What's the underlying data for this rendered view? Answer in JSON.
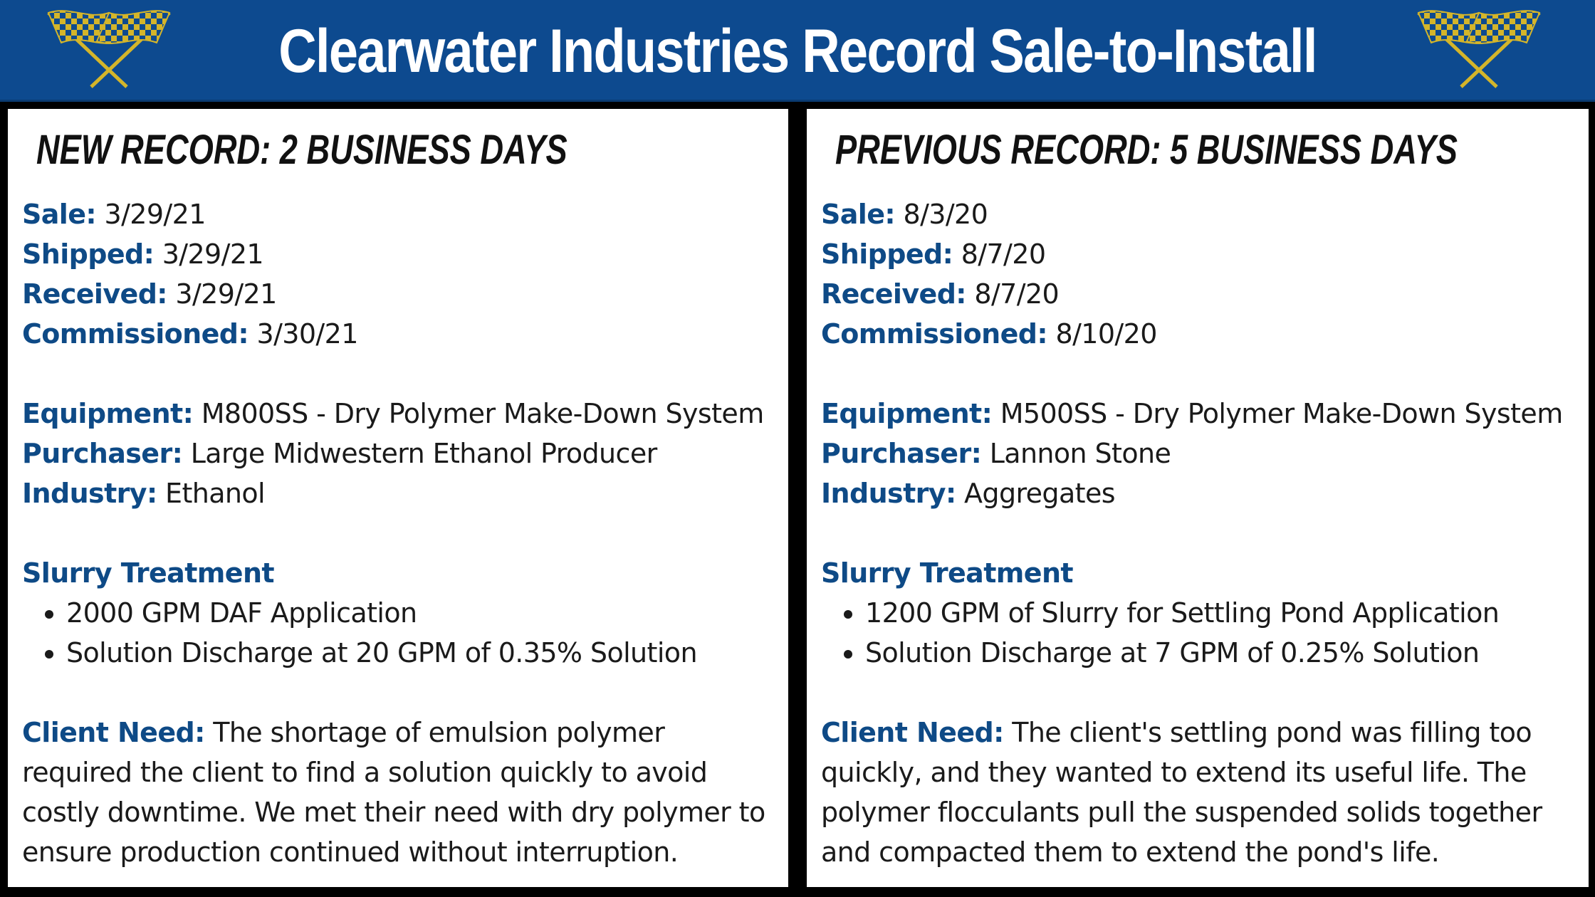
{
  "header": {
    "title": "Clearwater Industries Record Sale-to-Install",
    "icon": "checkered-flags-icon",
    "colors": {
      "background": "#0d4a8f",
      "flag_yellow": "#d4b52a",
      "flag_blue": "#0d4a8f"
    }
  },
  "colors": {
    "label": "#0e4a86",
    "text": "#1a1a1a",
    "frame": "#000000"
  },
  "new_record": {
    "title": "New Record: 2 Business Days",
    "sale_label": "Sale:",
    "sale": "3/29/21",
    "shipped_label": "Shipped:",
    "shipped": "3/29/21",
    "received_label": "Received:",
    "received": "3/29/21",
    "commissioned_label": "Commissioned:",
    "commissioned": "3/30/21",
    "equipment_label": "Equipment:",
    "equipment": "M800SS - Dry Polymer Make-Down System",
    "purchaser_label": "Purchaser:",
    "purchaser": "Large Midwestern Ethanol Producer",
    "industry_label": "Industry:",
    "industry": "Ethanol",
    "slurry_heading": "Slurry Treatment",
    "bullets": [
      "2000 GPM DAF Application",
      "Solution Discharge at 20 GPM of 0.35% Solution"
    ],
    "client_need_label": "Client Need:",
    "client_need": "The shortage of emulsion polymer required the client to find a solution quickly to avoid costly downtime. We met their need with dry polymer to ensure production continued without interruption."
  },
  "previous_record": {
    "title": "Previous Record: 5 Business Days",
    "sale_label": "Sale:",
    "sale": "8/3/20",
    "shipped_label": "Shipped:",
    "shipped": "8/7/20",
    "received_label": "Received:",
    "received": "8/7/20",
    "commissioned_label": "Commissioned:",
    "commissioned": "8/10/20",
    "equipment_label": "Equipment:",
    "equipment": "M500SS - Dry Polymer Make-Down System",
    "purchaser_label": "Purchaser:",
    "purchaser": "Lannon Stone",
    "industry_label": "Industry:",
    "industry": "Aggregates",
    "slurry_heading": "Slurry Treatment",
    "bullets": [
      "1200 GPM of Slurry for Settling Pond Application",
      "Solution Discharge at 7 GPM of 0.25% Solution"
    ],
    "client_need_label": "Client Need:",
    "client_need": "The client's settling pond was filling too quickly, and they wanted to extend its useful life. The polymer flocculants pull the suspended solids together and compacted them to extend the pond's life."
  }
}
